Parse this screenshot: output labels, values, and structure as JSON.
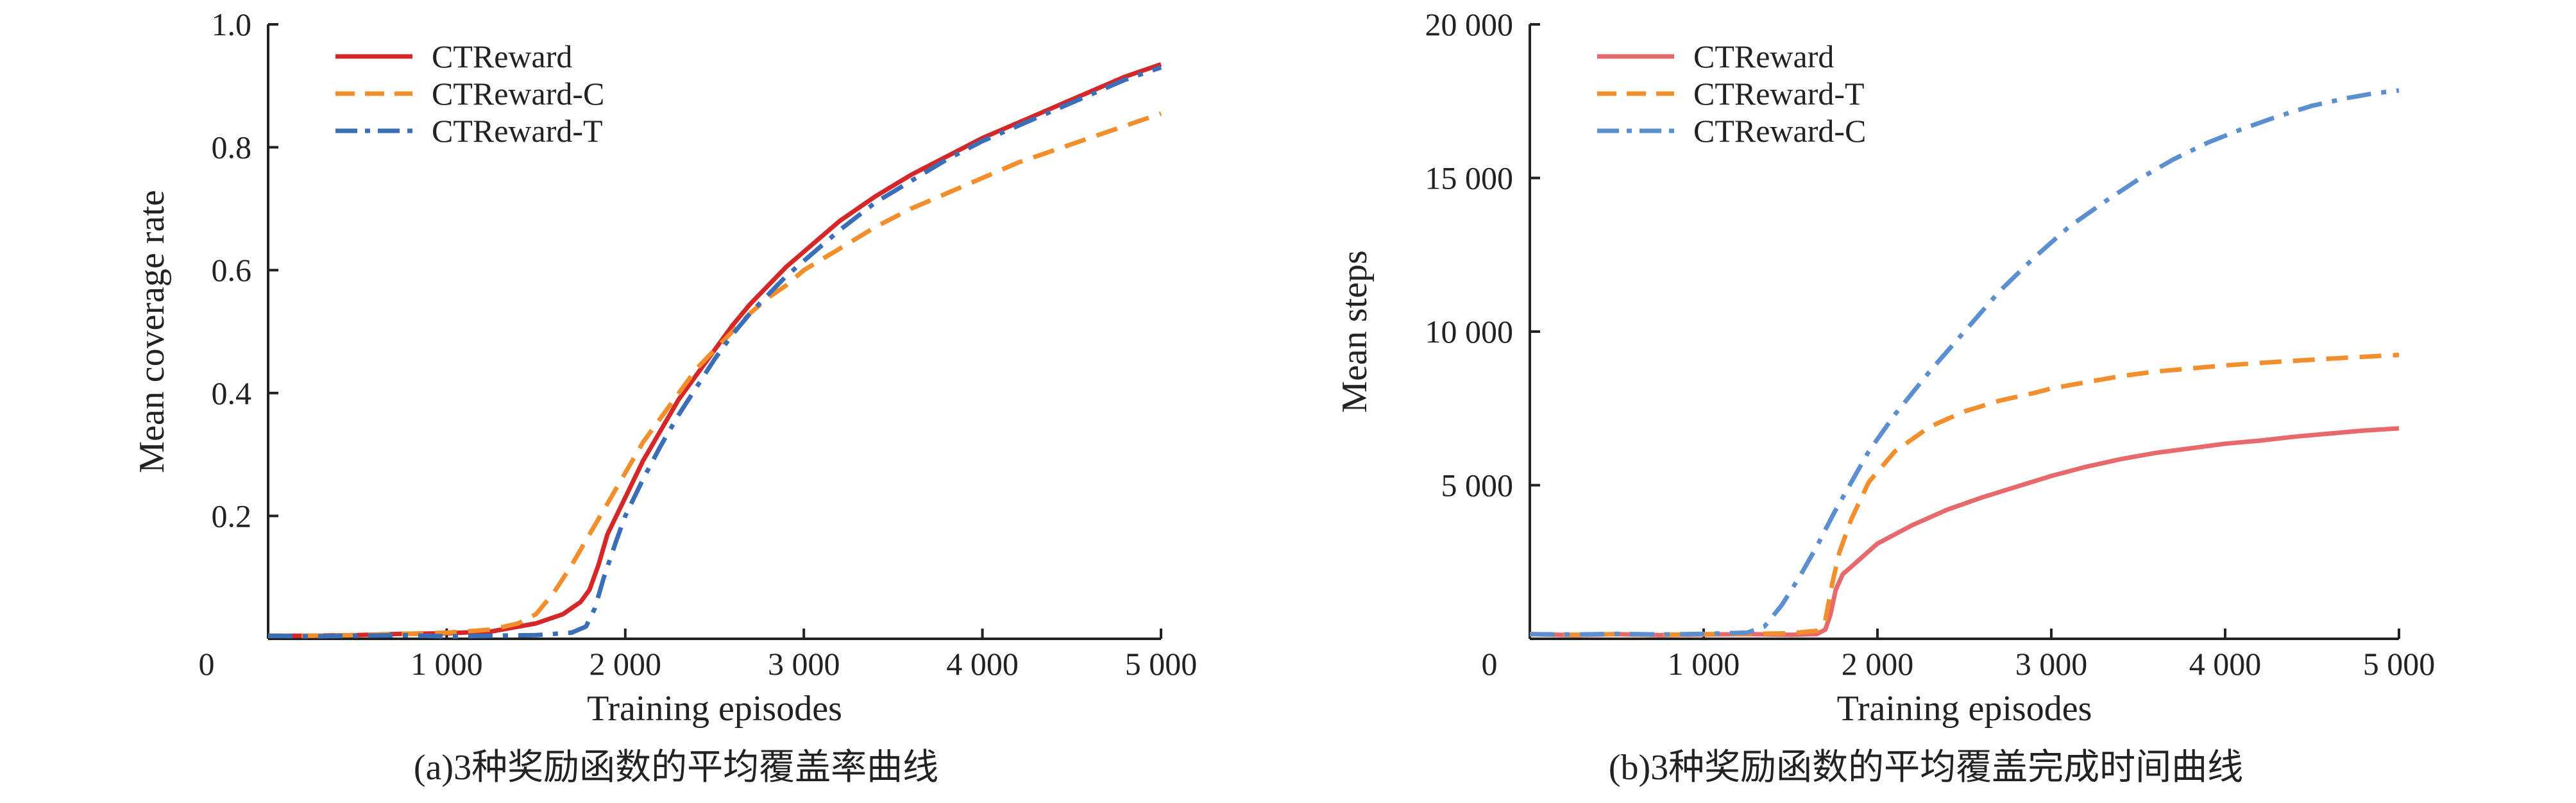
{
  "chart_data": [
    {
      "type": "line",
      "caption": "(a)3种奖励函数的平均覆盖率曲线",
      "xlabel": "Training episodes",
      "ylabel": "Mean coverage rate",
      "xlim": [
        0,
        5000
      ],
      "ylim": [
        0,
        1.0
      ],
      "xticks": [
        0,
        1000,
        2000,
        3000,
        4000,
        5000
      ],
      "xtick_labels": [
        "0",
        "1 000",
        "2 000",
        "3 000",
        "4 000",
        "5 000"
      ],
      "yticks": [
        0.2,
        0.4,
        0.6,
        0.8,
        1.0
      ],
      "ytick_labels": [
        "0.2",
        "0.4",
        "0.6",
        "0.8",
        "1.0"
      ],
      "grid": false,
      "legend_position": "top-left",
      "series": [
        {
          "name": "CTReward",
          "color": "#d62728",
          "dash": "solid",
          "x": [
            0,
            250,
            500,
            750,
            1000,
            1250,
            1500,
            1650,
            1750,
            1800,
            1850,
            1900,
            2000,
            2100,
            2200,
            2300,
            2400,
            2500,
            2600,
            2700,
            2800,
            2900,
            3000,
            3200,
            3400,
            3600,
            3800,
            4000,
            4200,
            4400,
            4600,
            4800,
            5000
          ],
          "y": [
            0.005,
            0.005,
            0.006,
            0.008,
            0.009,
            0.012,
            0.025,
            0.04,
            0.06,
            0.08,
            0.12,
            0.17,
            0.23,
            0.29,
            0.34,
            0.39,
            0.43,
            0.47,
            0.51,
            0.545,
            0.575,
            0.605,
            0.63,
            0.68,
            0.72,
            0.755,
            0.785,
            0.815,
            0.84,
            0.865,
            0.89,
            0.915,
            0.935
          ]
        },
        {
          "name": "CTReward-C",
          "color": "#f28e2b",
          "dash": "dashed",
          "x": [
            0,
            250,
            500,
            750,
            1000,
            1250,
            1400,
            1500,
            1600,
            1700,
            1800,
            1900,
            2000,
            2100,
            2200,
            2300,
            2400,
            2500,
            2600,
            2700,
            2800,
            2900,
            3000,
            3200,
            3400,
            3600,
            3800,
            4000,
            4200,
            4400,
            4600,
            4800,
            5000
          ],
          "y": [
            0.005,
            0.005,
            0.006,
            0.008,
            0.01,
            0.015,
            0.025,
            0.04,
            0.075,
            0.12,
            0.17,
            0.22,
            0.27,
            0.32,
            0.36,
            0.4,
            0.44,
            0.47,
            0.5,
            0.53,
            0.555,
            0.575,
            0.6,
            0.635,
            0.67,
            0.7,
            0.725,
            0.75,
            0.775,
            0.795,
            0.815,
            0.835,
            0.855
          ]
        },
        {
          "name": "CTReward-T",
          "color": "#3a6fb8",
          "dash": "dashdot",
          "x": [
            0,
            250,
            500,
            750,
            1000,
            1250,
            1500,
            1700,
            1780,
            1830,
            1880,
            1950,
            2000,
            2100,
            2200,
            2300,
            2400,
            2500,
            2600,
            2700,
            2800,
            2900,
            3000,
            3200,
            3400,
            3600,
            3800,
            4000,
            4200,
            4400,
            4600,
            4800,
            5000
          ],
          "y": [
            0.005,
            0.004,
            0.005,
            0.006,
            0.004,
            0.005,
            0.006,
            0.01,
            0.02,
            0.05,
            0.1,
            0.16,
            0.2,
            0.26,
            0.315,
            0.365,
            0.41,
            0.455,
            0.495,
            0.53,
            0.56,
            0.59,
            0.615,
            0.665,
            0.71,
            0.745,
            0.78,
            0.81,
            0.835,
            0.86,
            0.885,
            0.91,
            0.93
          ]
        }
      ]
    },
    {
      "type": "line",
      "caption": "(b)3种奖励函数的平均覆盖完成时间曲线",
      "xlabel": "Training episodes",
      "ylabel": "Mean steps",
      "xlim": [
        0,
        5000
      ],
      "ylim": [
        0,
        20000
      ],
      "xticks": [
        0,
        1000,
        2000,
        3000,
        4000,
        5000
      ],
      "xtick_labels": [
        "0",
        "1 000",
        "2 000",
        "3 000",
        "4 000",
        "5 000"
      ],
      "yticks": [
        5000,
        10000,
        15000,
        20000
      ],
      "ytick_labels": [
        "5 000",
        "10 000",
        "15 000",
        "20 000"
      ],
      "grid": false,
      "legend_position": "top-left",
      "series": [
        {
          "name": "CTReward",
          "color": "#e8696b",
          "dash": "solid",
          "x": [
            0,
            250,
            500,
            750,
            1000,
            1250,
            1500,
            1650,
            1700,
            1730,
            1760,
            1800,
            1900,
            2000,
            2200,
            2400,
            2600,
            2800,
            3000,
            3200,
            3400,
            3600,
            3800,
            4000,
            4200,
            4400,
            4600,
            4800,
            5000
          ],
          "y": [
            150,
            120,
            150,
            120,
            140,
            150,
            130,
            150,
            300,
            800,
            1600,
            2100,
            2600,
            3100,
            3700,
            4200,
            4600,
            4950,
            5300,
            5600,
            5850,
            6050,
            6200,
            6350,
            6450,
            6580,
            6680,
            6780,
            6850
          ]
        },
        {
          "name": "CTReward-T",
          "color": "#f28e2b",
          "dash": "dashed",
          "x": [
            0,
            250,
            500,
            750,
            1000,
            1250,
            1500,
            1650,
            1700,
            1740,
            1780,
            1850,
            1950,
            2100,
            2300,
            2500,
            2700,
            2900,
            3000,
            3200,
            3400,
            3600,
            3800,
            4000,
            4200,
            4400,
            4600,
            4800,
            5000
          ],
          "y": [
            150,
            130,
            150,
            130,
            150,
            160,
            180,
            260,
            600,
            1800,
            2800,
            3900,
            5100,
            6100,
            6900,
            7400,
            7750,
            8000,
            8150,
            8350,
            8550,
            8700,
            8800,
            8900,
            8980,
            9050,
            9120,
            9180,
            9240
          ]
        },
        {
          "name": "CTReward-C",
          "color": "#5b8fd0",
          "dash": "dashdot",
          "x": [
            0,
            250,
            500,
            750,
            1000,
            1250,
            1350,
            1450,
            1550,
            1650,
            1750,
            1850,
            1950,
            2100,
            2300,
            2500,
            2700,
            2900,
            3100,
            3300,
            3500,
            3700,
            3900,
            4100,
            4300,
            4500,
            4700,
            4850,
            5000
          ],
          "y": [
            150,
            140,
            160,
            140,
            160,
            200,
            400,
            1100,
            2000,
            3000,
            4100,
            5100,
            6100,
            7300,
            8700,
            10000,
            11300,
            12400,
            13400,
            14200,
            14950,
            15600,
            16150,
            16600,
            17000,
            17350,
            17600,
            17750,
            17850
          ]
        }
      ]
    }
  ]
}
